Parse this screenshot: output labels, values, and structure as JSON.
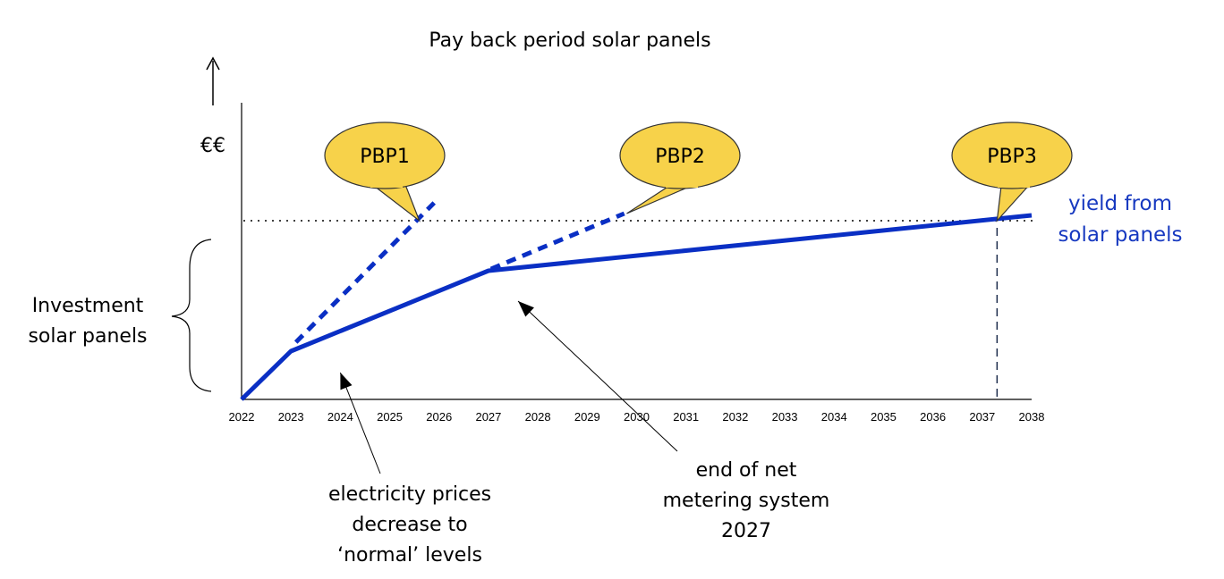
{
  "chart_data": {
    "type": "line",
    "title": "Pay back period solar panels",
    "ylabel": "€€",
    "xlabel": "",
    "x_ticks": [
      "2022",
      "2023",
      "2024",
      "2025",
      "2026",
      "2027",
      "2028",
      "2029",
      "2030",
      "2031",
      "2032",
      "2033",
      "2034",
      "2035",
      "2036",
      "2037",
      "2038"
    ],
    "xlim": [
      2022,
      2038
    ],
    "ylim": [
      0,
      1.6
    ],
    "investment_level": 1.0,
    "investment_label": "Investment solar panels",
    "series": [
      {
        "name": "yield from solar panels",
        "style": "solid",
        "color": "#0a2fc4",
        "x": [
          2022,
          2023,
          2027,
          2038
        ],
        "y": [
          0,
          0.27,
          0.72,
          1.03
        ]
      },
      {
        "style": "dashed",
        "color": "#0a2fc4",
        "x": [
          2023.1,
          2025.9
        ],
        "y": [
          0.32,
          1.1
        ]
      },
      {
        "style": "dashed",
        "color": "#0a2fc4",
        "x": [
          2027.05,
          2029.75
        ],
        "y": [
          0.73,
          1.04
        ]
      }
    ],
    "callouts": [
      {
        "label": "PBP1",
        "x": 2025.6,
        "y": 1.0
      },
      {
        "label": "PBP2",
        "x": 2029.8,
        "y": 1.04
      },
      {
        "label": "PBP3",
        "x": 2037.3,
        "y": 1.0
      }
    ],
    "annotations": [
      {
        "lines": [
          "electricity prices",
          "decrease to",
          "‘normal’ levels"
        ],
        "points_to_x": 2024.0,
        "points_to_y": 0.15
      },
      {
        "lines": [
          "end of net",
          "metering system",
          "2027"
        ],
        "points_to_x": 2027.6,
        "points_to_y": 0.55
      }
    ],
    "colors": {
      "line": "#0a2fc4",
      "callout_fill": "#f7d24a",
      "callout_stroke": "#333333"
    }
  }
}
